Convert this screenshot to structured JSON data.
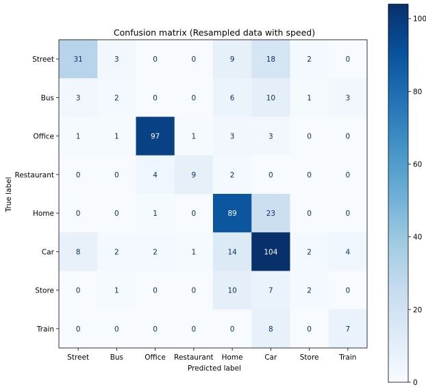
{
  "chart_data": {
    "type": "heatmap",
    "title": "Confusion matrix (Resampled data with speed)",
    "xlabel": "Predicted label",
    "ylabel": "True label",
    "row_labels": [
      "Street",
      "Bus",
      "Office",
      "Restaurant",
      "Home",
      "Car",
      "Store",
      "Train"
    ],
    "col_labels": [
      "Street",
      "Bus",
      "Office",
      "Restaurant",
      "Home",
      "Car",
      "Store",
      "Train"
    ],
    "values": [
      [
        31,
        3,
        0,
        0,
        9,
        18,
        2,
        0
      ],
      [
        3,
        2,
        0,
        0,
        6,
        10,
        1,
        3
      ],
      [
        1,
        1,
        97,
        1,
        3,
        3,
        0,
        0
      ],
      [
        0,
        0,
        4,
        9,
        2,
        0,
        0,
        0
      ],
      [
        0,
        0,
        1,
        0,
        89,
        23,
        0,
        0
      ],
      [
        8,
        2,
        2,
        1,
        14,
        104,
        2,
        4
      ],
      [
        0,
        1,
        0,
        0,
        10,
        7,
        2,
        0
      ],
      [
        0,
        0,
        0,
        0,
        0,
        8,
        0,
        7
      ]
    ],
    "colorbar": {
      "range": [
        0,
        104
      ],
      "ticks": [
        0,
        20,
        40,
        60,
        80,
        100
      ],
      "colormap": "Blues"
    },
    "colors": {
      "low": "#f7fbff",
      "high": "#08306b"
    }
  }
}
